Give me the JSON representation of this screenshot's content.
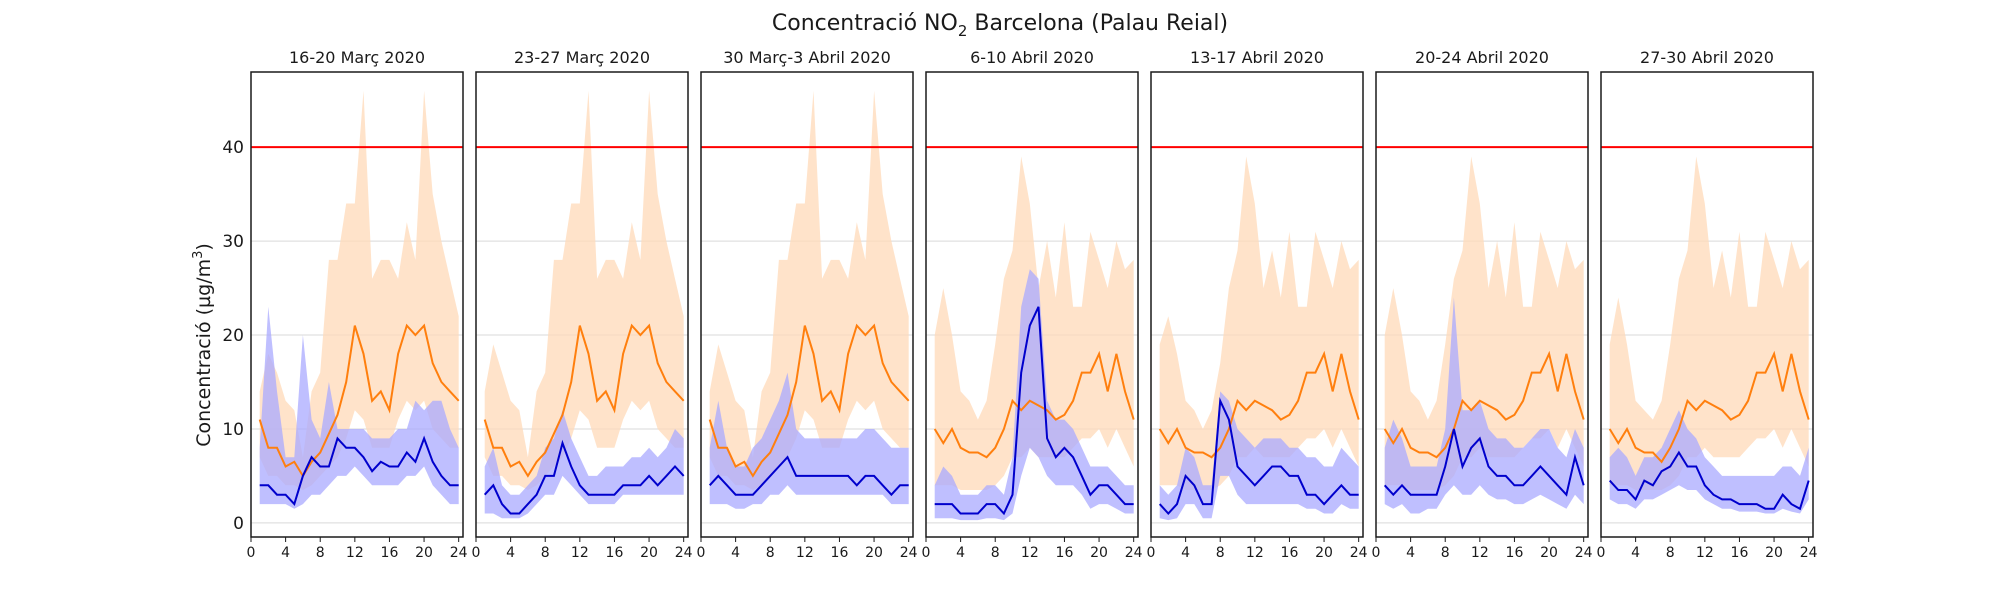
{
  "chart_data": {
    "type": "line",
    "title": "Concentració NO2 Barcelona (Palau Reial)",
    "title_main": "Concentració NO",
    "title_sub": "2",
    "title_rest": " Barcelona (Palau Reial)",
    "ylabel": "Concentració (µg/m³)",
    "ylabel_main": "Concentració (µg/m",
    "ylabel_sup": "3",
    "ylabel_end": ")",
    "xlim": [
      0,
      24.5
    ],
    "ylim": [
      -1.5,
      48
    ],
    "x_ticks": [
      "0",
      "4",
      "8",
      "12",
      "16",
      "20",
      "24"
    ],
    "y_ticks": [
      "0",
      "10",
      "20",
      "30",
      "40"
    ],
    "limit_line": {
      "value": 40,
      "color": "#ff0000"
    },
    "colors": {
      "orange_line": "#ff7f0e",
      "orange_band": "#ffdab8",
      "blue_line": "#0000cc",
      "blue_band": "#aaaaff",
      "grid": "#d9d9d9"
    },
    "hours": [
      1,
      2,
      3,
      4,
      5,
      6,
      7,
      8,
      9,
      10,
      11,
      12,
      13,
      14,
      15,
      16,
      17,
      18,
      19,
      20,
      21,
      22,
      23,
      24
    ],
    "panels": [
      {
        "title": "16-20 Març 2020",
        "orange_mean": [
          11,
          8,
          8,
          6,
          6.5,
          5,
          6.5,
          7.5,
          9.5,
          11.5,
          15,
          21,
          18,
          13,
          14,
          12,
          18,
          21,
          20,
          21,
          17,
          15,
          14,
          13
        ],
        "orange_min": [
          7,
          5,
          5,
          4,
          4,
          3.5,
          4,
          5,
          6,
          7,
          9,
          12,
          11,
          8,
          8,
          8,
          11,
          13,
          12,
          13,
          10,
          9,
          8,
          8
        ],
        "orange_max": [
          14,
          18,
          16,
          13,
          12,
          7,
          14,
          16,
          28,
          28,
          34,
          34,
          46,
          26,
          28,
          28,
          26,
          32,
          28,
          46,
          35,
          30,
          26,
          22
        ],
        "blue_mean": [
          4,
          4,
          3,
          3,
          2,
          5,
          7,
          6,
          6,
          9,
          8,
          8,
          7,
          5.5,
          6.5,
          6,
          6,
          7.5,
          6.5,
          9,
          6.5,
          5,
          4,
          4
        ],
        "blue_min": [
          2,
          2,
          2,
          2,
          1.5,
          2,
          3,
          3,
          4,
          5,
          5,
          6,
          5,
          4,
          4,
          4,
          4,
          5,
          5,
          6,
          4,
          3,
          2,
          2
        ],
        "blue_max": [
          8,
          23,
          14,
          7,
          7,
          20,
          11,
          9,
          15,
          10,
          10,
          10,
          10,
          9,
          9,
          9,
          10,
          10,
          13,
          12,
          13,
          13,
          10,
          8
        ]
      },
      {
        "title": "23-27 Març 2020",
        "orange_mean": [
          11,
          8,
          8,
          6,
          6.5,
          5,
          6.5,
          7.5,
          9.5,
          11.5,
          15,
          21,
          18,
          13,
          14,
          12,
          18,
          21,
          20,
          21,
          17,
          15,
          14,
          13
        ],
        "orange_min": [
          7,
          5,
          5,
          4,
          4,
          3.5,
          4,
          5,
          6,
          7,
          9,
          12,
          11,
          8,
          8,
          8,
          11,
          13,
          12,
          13,
          10,
          9,
          8,
          8
        ],
        "orange_max": [
          14,
          19,
          16,
          13,
          12,
          7,
          14,
          16,
          28,
          28,
          34,
          34,
          46,
          26,
          28,
          28,
          26,
          32,
          28,
          46,
          35,
          30,
          26,
          22
        ],
        "blue_mean": [
          3,
          4,
          2,
          1,
          1,
          2,
          3,
          5,
          5,
          8.5,
          6,
          4,
          3,
          3,
          3,
          3,
          4,
          4,
          4,
          5,
          4,
          5,
          6,
          5
        ],
        "blue_min": [
          1,
          1,
          0.5,
          0.5,
          0.5,
          1,
          2,
          3,
          3,
          5,
          4,
          3,
          2,
          2,
          2,
          2,
          3,
          3,
          3,
          3,
          3,
          3,
          3,
          3
        ],
        "blue_max": [
          6,
          8,
          4,
          3,
          3,
          4,
          5,
          8,
          9,
          12,
          9,
          7,
          5,
          5,
          6,
          6,
          6,
          7,
          7,
          8,
          7,
          8,
          10,
          9
        ]
      },
      {
        "title": "30 Març-3 Abril 2020",
        "orange_mean": [
          11,
          8,
          8,
          6,
          6.5,
          5,
          6.5,
          7.5,
          9.5,
          11.5,
          15,
          21,
          18,
          13,
          14,
          12,
          18,
          21,
          20,
          21,
          17,
          15,
          14,
          13
        ],
        "orange_min": [
          7,
          5,
          5,
          4,
          4,
          3.5,
          4,
          5,
          6,
          7,
          9,
          12,
          11,
          8,
          8,
          8,
          11,
          13,
          12,
          13,
          10,
          9,
          8,
          8
        ],
        "orange_max": [
          14,
          19,
          16,
          13,
          12,
          7,
          14,
          16,
          28,
          28,
          34,
          34,
          46,
          26,
          28,
          28,
          26,
          32,
          28,
          46,
          35,
          30,
          26,
          22
        ],
        "blue_mean": [
          4,
          5,
          4,
          3,
          3,
          3,
          4,
          5,
          6,
          7,
          5,
          5,
          5,
          5,
          5,
          5,
          5,
          4,
          5,
          5,
          4,
          3,
          4,
          4
        ],
        "blue_min": [
          2,
          2,
          2,
          1.5,
          1.5,
          2,
          2,
          3,
          3,
          4,
          3,
          3,
          3,
          3,
          3,
          3,
          3,
          3,
          3,
          3,
          3,
          2,
          2,
          2
        ],
        "blue_max": [
          8,
          13,
          8,
          6,
          6,
          8,
          9,
          11,
          13,
          16,
          10,
          9,
          9,
          9,
          9,
          9,
          9,
          9,
          10,
          10,
          9,
          8,
          8,
          8
        ]
      },
      {
        "title": "6-10 Abril 2020",
        "orange_mean": [
          10,
          8.5,
          10,
          8,
          7.5,
          7.5,
          7,
          8,
          10,
          13,
          12,
          13,
          12.5,
          12,
          11,
          11.5,
          13,
          16,
          16,
          18,
          14,
          18,
          14,
          11
        ],
        "orange_min": [
          4,
          4,
          4,
          3.5,
          3.5,
          3.5,
          3.5,
          4,
          5,
          7,
          7,
          8,
          7,
          7,
          7,
          7,
          8,
          9,
          9,
          10,
          8,
          10,
          8,
          6
        ],
        "orange_max": [
          20,
          25,
          20,
          14,
          13,
          11,
          13,
          19,
          26,
          29,
          39,
          34,
          25,
          30,
          24,
          32,
          23,
          23,
          31,
          28,
          25,
          30,
          27,
          28
        ],
        "blue_mean": [
          2,
          2,
          2,
          1,
          1,
          1,
          2,
          2,
          1,
          3,
          16,
          21,
          23,
          9,
          7,
          8,
          7,
          5,
          3,
          4,
          4,
          3,
          2,
          2
        ],
        "blue_min": [
          0.5,
          0.5,
          0.5,
          0.3,
          0.3,
          0.3,
          0.5,
          0.5,
          0.3,
          1,
          5,
          8,
          7,
          5,
          4,
          4,
          4,
          3,
          1.5,
          2,
          2,
          1.5,
          1,
          1
        ],
        "blue_max": [
          4,
          6,
          5,
          3,
          3,
          3,
          4,
          4,
          3,
          7,
          23,
          27,
          26,
          13,
          11,
          11,
          10,
          8,
          6,
          6,
          6,
          5,
          4,
          4
        ]
      },
      {
        "title": "13-17 Abril 2020",
        "orange_mean": [
          10,
          8.5,
          10,
          8,
          7.5,
          7.5,
          7,
          8,
          10,
          13,
          12,
          13,
          12.5,
          12,
          11,
          11.5,
          13,
          16,
          16,
          18,
          14,
          18,
          14,
          11
        ],
        "orange_min": [
          4,
          4,
          4,
          3.5,
          3.5,
          3.5,
          3.5,
          4,
          5,
          7,
          7,
          8,
          7,
          7,
          7,
          7,
          8,
          9,
          9,
          10,
          8,
          10,
          8,
          6
        ],
        "orange_max": [
          19,
          22,
          18,
          13,
          12,
          10,
          12,
          17,
          25,
          29,
          39,
          34,
          25,
          29,
          24,
          31,
          23,
          23,
          31,
          28,
          25,
          30,
          27,
          28
        ],
        "blue_mean": [
          2,
          1,
          2,
          5,
          4,
          2,
          2,
          13,
          11,
          6,
          5,
          4,
          5,
          6,
          6,
          5,
          5,
          3,
          3,
          2,
          3,
          4,
          3,
          3
        ],
        "blue_min": [
          0.5,
          0.3,
          0.5,
          2,
          2,
          0.5,
          0.5,
          5,
          5,
          3,
          2,
          2,
          2,
          2,
          2,
          2,
          2,
          1.5,
          1.5,
          1,
          1,
          2,
          1.5,
          1.5
        ],
        "blue_max": [
          4,
          3,
          4,
          8,
          7,
          4,
          4,
          14,
          13,
          10,
          9,
          8,
          9,
          9,
          9,
          8,
          8,
          7,
          7,
          6,
          6,
          8,
          7,
          6
        ]
      },
      {
        "title": "20-24 Abril 2020",
        "orange_mean": [
          10,
          8.5,
          10,
          8,
          7.5,
          7.5,
          7,
          8,
          10,
          13,
          12,
          13,
          12.5,
          12,
          11,
          11.5,
          13,
          16,
          16,
          18,
          14,
          18,
          14,
          11
        ],
        "orange_min": [
          4,
          4,
          4,
          3.5,
          3.5,
          3.5,
          3.5,
          4,
          5,
          7,
          7,
          8,
          7,
          7,
          7,
          7,
          8,
          9,
          9,
          10,
          8,
          10,
          8,
          6
        ],
        "orange_max": [
          20,
          25,
          20,
          14,
          13,
          11,
          13,
          19,
          26,
          29,
          39,
          34,
          25,
          30,
          24,
          32,
          23,
          23,
          31,
          28,
          25,
          30,
          27,
          28
        ],
        "blue_mean": [
          4,
          3,
          4,
          3,
          3,
          3,
          3,
          6,
          10,
          6,
          8,
          9,
          6,
          5,
          5,
          4,
          4,
          5,
          6,
          5,
          4,
          3,
          7,
          4
        ],
        "blue_min": [
          2,
          1.5,
          2,
          1,
          1,
          1.5,
          1.5,
          3,
          4,
          3,
          3,
          4,
          3,
          2.5,
          2.5,
          2,
          2,
          2.5,
          3,
          2.5,
          2,
          1.5,
          3,
          2
        ],
        "blue_max": [
          8,
          11,
          9,
          6,
          6,
          6,
          6,
          10,
          24,
          12,
          12,
          13,
          10,
          9,
          9,
          8,
          8,
          9,
          10,
          10,
          8,
          7,
          10,
          8
        ]
      },
      {
        "title": "27-30 Abril 2020",
        "orange_mean": [
          10,
          8.5,
          10,
          8,
          7.5,
          7.5,
          6.5,
          8,
          10,
          13,
          12,
          13,
          12.5,
          12,
          11,
          11.5,
          13,
          16,
          16,
          18,
          14,
          18,
          14,
          11
        ],
        "orange_min": [
          4,
          4,
          4,
          3.5,
          3.5,
          3.5,
          3.5,
          4,
          5,
          7,
          7,
          8,
          7,
          7,
          7,
          7,
          8,
          9,
          9,
          10,
          8,
          10,
          8,
          6
        ],
        "orange_max": [
          19,
          24,
          19,
          13,
          12,
          11,
          13,
          19,
          26,
          29,
          39,
          34,
          25,
          29,
          24,
          31,
          23,
          23,
          31,
          28,
          25,
          30,
          27,
          28
        ],
        "blue_mean": [
          4.5,
          3.5,
          3.5,
          2.5,
          4.5,
          4,
          5.5,
          6,
          7.5,
          6,
          6,
          4,
          3,
          2.5,
          2.5,
          2,
          2,
          2,
          1.5,
          1.5,
          3,
          2,
          1.5,
          4.5
        ],
        "blue_min": [
          2.5,
          2,
          2,
          1.5,
          2.5,
          2.5,
          3,
          3.5,
          4,
          3.5,
          3.5,
          2.5,
          2,
          1.5,
          1.5,
          1.2,
          1.2,
          1.2,
          1,
          1,
          1.5,
          1.2,
          1,
          2.5
        ],
        "blue_max": [
          7,
          8,
          7,
          5,
          7,
          7,
          8,
          10,
          12,
          10,
          9,
          7,
          6,
          5,
          5,
          5,
          5,
          5,
          5,
          5,
          6,
          6,
          5,
          8
        ]
      }
    ]
  }
}
